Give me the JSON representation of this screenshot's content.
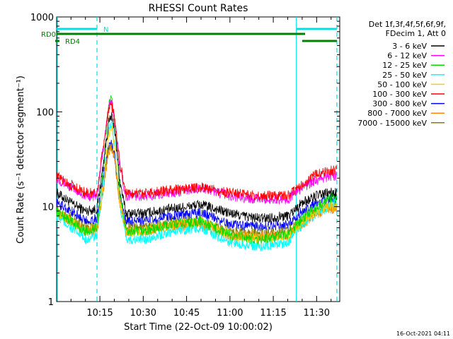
{
  "chart_data": {
    "type": "line",
    "title": "RHESSI Count Rates",
    "xlabel": "Start Time (22-Oct-09 10:00:02)",
    "ylabel": "Count Rate (s⁻¹ detector segment⁻¹)",
    "y_scale": "log",
    "ylim": [
      1,
      1000
    ],
    "xlim": [
      "10:00:02",
      "11:38:00"
    ],
    "grid": false,
    "legend_position": "right",
    "legend_header": [
      "Det 1f,3f,4f,5f,6f,9f,",
      "FDecim 1, Att 0"
    ],
    "x_ticks": [
      "10:15",
      "10:30",
      "10:45",
      "11:00",
      "11:15",
      "11:30"
    ],
    "y_ticks": [
      "1",
      "10",
      "100",
      "1000"
    ],
    "footer_timestamp": "16-Oct-2021 04:11",
    "x": [
      "10:00",
      "10:05",
      "10:10",
      "10:14",
      "10:16",
      "10:18",
      "10:19",
      "10:20",
      "10:22",
      "10:24",
      "10:30",
      "10:40",
      "10:50",
      "11:00",
      "11:10",
      "11:20",
      "11:25",
      "11:30",
      "11:34",
      "11:37"
    ],
    "series": [
      {
        "name": "3 - 6 keV",
        "color": "#000000",
        "values": [
          14,
          11,
          9,
          9.5,
          25,
          75,
          90,
          70,
          18,
          8.5,
          8.5,
          9.5,
          10.5,
          8.5,
          7.5,
          8,
          11,
          13,
          14,
          14
        ]
      },
      {
        "name": "6 - 12 keV",
        "color": "#ff00ff",
        "values": [
          20,
          16,
          13,
          13,
          38,
          110,
          125,
          90,
          26,
          13,
          13,
          14,
          16,
          13,
          12,
          12,
          16,
          19,
          21,
          21
        ]
      },
      {
        "name": "12 - 25 keV",
        "color": "#00dd00",
        "values": [
          9,
          7,
          5.5,
          6,
          22,
          115,
          135,
          90,
          14,
          5.5,
          5.5,
          6.5,
          7,
          5,
          4.5,
          5,
          7.5,
          10,
          12,
          13
        ]
      },
      {
        "name": "25 - 50 keV",
        "color": "#00ffff",
        "values": [
          8,
          6,
          4.5,
          5,
          15,
          65,
          75,
          50,
          10,
          4.5,
          4.5,
          5.5,
          6,
          4.2,
          3.8,
          4.2,
          6.5,
          8.5,
          10,
          11
        ]
      },
      {
        "name": "50 - 100 keV",
        "color": "#ffcc00",
        "values": [
          9,
          7,
          5.5,
          6,
          16,
          58,
          68,
          46,
          11,
          5.5,
          5.5,
          6.5,
          7,
          5,
          4.6,
          5,
          7,
          9,
          10,
          10
        ]
      },
      {
        "name": "100 - 300 keV",
        "color": "#ff0000",
        "values": [
          21,
          17,
          14,
          14,
          40,
          105,
          120,
          88,
          28,
          14,
          14,
          15,
          16,
          14,
          13,
          13,
          17,
          22,
          24,
          24
        ]
      },
      {
        "name": "300 - 800 keV",
        "color": "#0000ff",
        "values": [
          11,
          9,
          7,
          7.5,
          20,
          42,
          46,
          36,
          13,
          7,
          7,
          8,
          8.5,
          6.5,
          6.2,
          6.5,
          9,
          11,
          12,
          12
        ]
      },
      {
        "name": "800 - 7000 keV",
        "color": "#ff8800",
        "values": [
          8.5,
          7,
          5.5,
          5.5,
          14,
          38,
          42,
          32,
          10,
          5.5,
          5.5,
          6.2,
          6.5,
          5,
          4.8,
          5,
          6.5,
          8.5,
          9.5,
          9.5
        ]
      },
      {
        "name": "7000 - 15000 keV",
        "color": "#808000",
        "values": [
          9,
          7.5,
          6,
          6,
          15,
          40,
          44,
          34,
          11,
          6,
          6,
          6.8,
          7,
          5.5,
          5.2,
          5.5,
          7,
          9,
          10,
          10
        ]
      }
    ],
    "attenuator_bars": [
      {
        "label": "N",
        "color": "#00e0e0",
        "segments": [
          [
            "10:00",
            "10:14"
          ],
          [
            "11:23",
            "11:37"
          ]
        ]
      },
      {
        "label": "RD0",
        "color": "#008000",
        "segments": [
          [
            "10:00",
            "11:26"
          ]
        ]
      },
      {
        "label": "RD4",
        "color": "#008000",
        "segments": [
          [
            "10:00",
            "10:00"
          ],
          [
            "11:25",
            "11:37"
          ]
        ]
      }
    ],
    "vertical_markers": [
      {
        "time": "10:00",
        "style": "solid",
        "color": "#00e0e0"
      },
      {
        "time": "10:14",
        "style": "dashed",
        "color": "#00e0e0"
      },
      {
        "time": "11:23",
        "style": "solid",
        "color": "#00e0e0"
      },
      {
        "time": "11:37",
        "style": "dashed",
        "color": "#00e0e0"
      }
    ]
  }
}
